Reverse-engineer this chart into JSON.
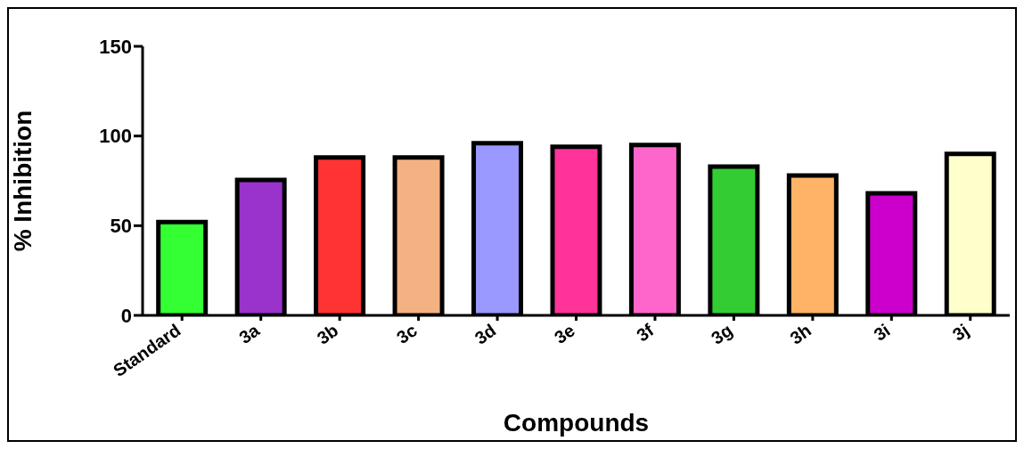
{
  "chart_data": {
    "type": "bar",
    "xlabel": "Compounds",
    "ylabel": "% Inhibition",
    "categories": [
      "Standard",
      "3a",
      "3b",
      "3c",
      "3d",
      "3e",
      "3f",
      "3g",
      "3h",
      "3i",
      "3j"
    ],
    "values": [
      52,
      75.5,
      88,
      88,
      96,
      94,
      95,
      83,
      78,
      68,
      90
    ],
    "colors": [
      "#33ff33",
      "#9933cc",
      "#ff3333",
      "#f4b183",
      "#9999ff",
      "#ff3399",
      "#ff66cc",
      "#33cc33",
      "#ffb366",
      "#cc00cc",
      "#ffffcc"
    ],
    "ylim": [
      0,
      150
    ],
    "yticks": [
      0,
      50,
      100,
      150
    ],
    "grid": false,
    "legend": false
  }
}
